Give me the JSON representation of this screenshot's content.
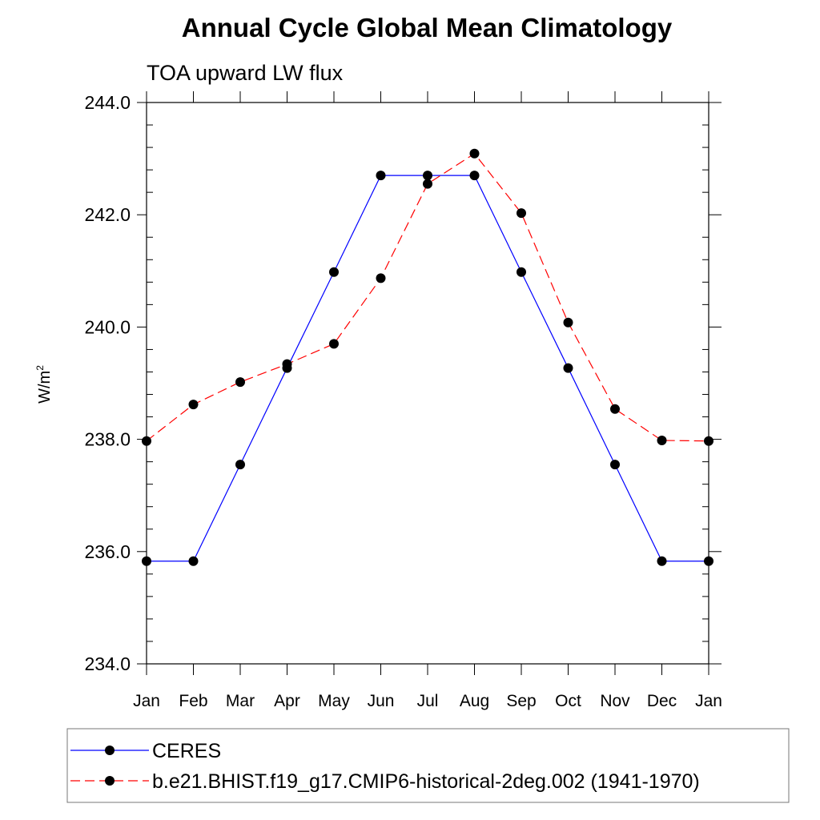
{
  "chart_data": {
    "type": "line",
    "title": "Annual Cycle Global Mean Climatology",
    "subtitle": "TOA upward LW flux",
    "ylabel": "W/m",
    "ylabel_sup": "2",
    "ylim": [
      234.0,
      244.0
    ],
    "yticks": [
      "234.0",
      "236.0",
      "238.0",
      "240.0",
      "242.0",
      "244.0"
    ],
    "categories": [
      "Jan",
      "Feb",
      "Mar",
      "Apr",
      "May",
      "Jun",
      "Jul",
      "Aug",
      "Sep",
      "Oct",
      "Nov",
      "Dec",
      "Jan"
    ],
    "grid": false,
    "legend_position": "bottom",
    "series": [
      {
        "name": "CERES",
        "color": "#0000ff",
        "line_style": "solid",
        "marker": "filled-circle",
        "values": [
          235.83,
          235.83,
          237.55,
          239.27,
          240.98,
          242.7,
          242.7,
          242.7,
          240.98,
          239.27,
          237.55,
          235.83,
          235.83
        ]
      },
      {
        "name": "b.e21.BHIST.f19_g17.CMIP6-historical-2deg.002 (1941-1970)",
        "color": "#ff0000",
        "line_style": "dashed",
        "marker": "filled-circle",
        "values": [
          237.97,
          238.62,
          239.02,
          239.34,
          239.7,
          240.87,
          242.55,
          243.09,
          242.03,
          240.08,
          238.54,
          237.98,
          237.97
        ]
      }
    ]
  }
}
